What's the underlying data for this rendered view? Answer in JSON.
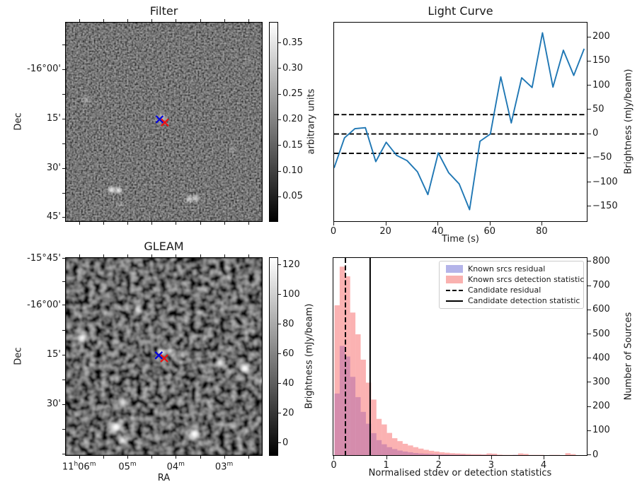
{
  "figure": {
    "background": "#ffffff"
  },
  "panels": {
    "filter": {
      "title": "Filter",
      "ylabel": "Dec",
      "yticks": {
        "labels": [
          "-16°00'",
          "15'",
          "30'",
          "45'"
        ],
        "fracs": [
          0.236,
          0.483,
          0.731,
          0.974
        ],
        "minor_fracs": [
          0.112,
          0.359,
          0.607,
          0.855
        ]
      },
      "xticks": {
        "fracs": [
          0.0706,
          0.3155,
          0.56,
          0.805
        ],
        "minor_fracs": [
          0.193,
          0.438,
          0.683,
          0.927
        ]
      },
      "colorbar": {
        "label": "arbitrary units",
        "ticks": [
          "0.05",
          "0.10",
          "0.15",
          "0.20",
          "0.25",
          "0.30",
          "0.35"
        ],
        "fracs": [
          0.872,
          0.744,
          0.615,
          0.487,
          0.359,
          0.231,
          0.103
        ]
      },
      "markers": [
        {
          "name": "candidate-position",
          "shape": "x",
          "color": "#0000dd",
          "fx": 0.478,
          "fy": 0.487
        },
        {
          "name": "matched-position",
          "shape": "x",
          "color": "#ee1111",
          "fx": 0.505,
          "fy": 0.503
        }
      ],
      "sources": [
        {
          "fx": 0.233,
          "fy": 0.842,
          "r": 4,
          "i": 0.95
        },
        {
          "fx": 0.269,
          "fy": 0.845,
          "r": 4,
          "i": 0.9
        },
        {
          "fx": 0.277,
          "fy": 0.918,
          "r": 2.5,
          "i": 0.5
        },
        {
          "fx": 0.63,
          "fy": 0.889,
          "r": 4,
          "i": 0.75
        },
        {
          "fx": 0.663,
          "fy": 0.886,
          "r": 4,
          "i": 0.7
        },
        {
          "fx": 0.105,
          "fy": 0.39,
          "r": 4,
          "i": 0.45
        },
        {
          "fx": 0.49,
          "fy": 0.482,
          "r": 7,
          "i": 0.38
        },
        {
          "fx": 0.85,
          "fy": 0.64,
          "r": 4,
          "i": 0.3
        },
        {
          "fx": 0.93,
          "fy": 0.19,
          "r": 3,
          "i": 0.3
        }
      ]
    },
    "gleam": {
      "title": "GLEAM",
      "ylabel": "Dec",
      "xlabel": "RA",
      "yticks": {
        "labels": [
          "-15°45'",
          "-16°00'",
          "15'",
          "30'"
        ],
        "fracs": [
          0.004,
          0.24,
          0.49,
          0.74
        ],
        "minor_fracs": [
          0.12,
          0.365,
          0.615,
          0.865,
          0.988
        ]
      },
      "xticks": {
        "label_parts": [
          [
            "11",
            "h",
            "06",
            "m"
          ],
          [
            "05",
            "m"
          ],
          [
            "04",
            "m"
          ],
          [
            "03",
            "m"
          ]
        ],
        "fracs": [
          0.0706,
          0.3155,
          0.56,
          0.805
        ],
        "minor_fracs": [
          0.193,
          0.438,
          0.683,
          0.927
        ]
      },
      "colorbar": {
        "label": "Brightness (mJy/beam)",
        "ticks": [
          "0",
          "20",
          "40",
          "60",
          "80",
          "100",
          "120"
        ],
        "fracs": [
          0.9328,
          0.7836,
          0.6343,
          0.4851,
          0.3358,
          0.1866,
          0.0373
        ]
      },
      "markers": [
        {
          "name": "candidate-position",
          "shape": "x",
          "color": "#0000dd",
          "fx": 0.474,
          "fy": 0.494
        },
        {
          "name": "matched-position",
          "shape": "x",
          "color": "#ee1111",
          "fx": 0.502,
          "fy": 0.509
        }
      ],
      "sources": [
        {
          "fx": 0.084,
          "fy": 0.404,
          "r": 6,
          "i": 1
        },
        {
          "fx": 0.075,
          "fy": 0.472,
          "r": 3.5,
          "i": 0.6
        },
        {
          "fx": 0.075,
          "fy": 0.535,
          "r": 3.5,
          "i": 0.55
        },
        {
          "fx": 0.255,
          "fy": 0.06,
          "r": 4,
          "i": 0.45
        },
        {
          "fx": 0.366,
          "fy": 0.258,
          "r": 5,
          "i": 0.85
        },
        {
          "fx": 0.263,
          "fy": 0.436,
          "r": 3,
          "i": 0.5
        },
        {
          "fx": 0.487,
          "fy": 0.477,
          "r": 5.5,
          "i": 1
        },
        {
          "fx": 0.53,
          "fy": 0.468,
          "r": 4.5,
          "i": 0.95
        },
        {
          "fx": 0.595,
          "fy": 0.484,
          "r": 3.5,
          "i": 0.6
        },
        {
          "fx": 0.787,
          "fy": 0.532,
          "r": 5,
          "i": 1
        },
        {
          "fx": 0.913,
          "fy": 0.561,
          "r": 6.5,
          "i": 1
        },
        {
          "fx": 1.0,
          "fy": 0.62,
          "r": 4.5,
          "i": 0.9
        },
        {
          "fx": 0.291,
          "fy": 0.737,
          "r": 4.5,
          "i": 0.9
        },
        {
          "fx": 0.255,
          "fy": 0.857,
          "r": 7,
          "i": 1
        },
        {
          "fx": 0.291,
          "fy": 0.926,
          "r": 5,
          "i": 0.95
        },
        {
          "fx": 0.655,
          "fy": 0.892,
          "r": 7,
          "i": 1
        },
        {
          "fx": 0.9,
          "fy": 0.187,
          "r": 3,
          "i": 0.45
        },
        {
          "fx": 0.84,
          "fy": 0.1,
          "r": 3,
          "i": 0.35
        },
        {
          "fx": 0.075,
          "fy": 0.3,
          "r": 3,
          "i": 0.4
        }
      ]
    }
  },
  "chart_data": [
    {
      "id": "light_curve",
      "type": "line",
      "title": "Light Curve",
      "xlabel": "Time (s)",
      "ylabel": "Brightness (mJy/beam)",
      "xlim": [
        0,
        97
      ],
      "ylim": [
        -180,
        230
      ],
      "xticks": [
        0,
        20,
        40,
        60,
        80
      ],
      "yticks": [
        -150,
        -100,
        -50,
        0,
        50,
        100,
        150,
        200
      ],
      "line_color": "#1f77b4",
      "x": [
        0,
        4,
        8,
        12,
        16,
        20,
        24,
        28,
        32,
        36,
        40,
        44,
        48,
        52,
        56,
        60,
        64,
        68,
        72,
        76,
        80,
        84,
        88,
        92,
        96
      ],
      "y": [
        -70,
        -8,
        11,
        13,
        -57,
        -17,
        -44,
        -55,
        -78,
        -125,
        -39,
        -80,
        -103,
        -156,
        -15,
        0,
        118,
        23,
        116,
        96,
        209,
        97,
        173,
        121,
        176
      ],
      "threshold_lines": {
        "style": "dashed",
        "color": "#000000",
        "values": [
          40,
          0,
          -40
        ]
      },
      "grid": false,
      "tick_side": "right"
    },
    {
      "id": "histogram",
      "type": "bar",
      "xlabel": "Normalised stdev or detection statistics",
      "ylabel": "Number of Sources",
      "xlim": [
        -0.02,
        4.81
      ],
      "ylim": [
        0,
        816
      ],
      "xticks": [
        0,
        1,
        2,
        3,
        4
      ],
      "yticks": [
        0,
        100,
        200,
        300,
        400,
        500,
        600,
        700,
        800
      ],
      "bin_start": 0,
      "bin_width": 0.1,
      "series": [
        {
          "name": "Known srcs residual",
          "fill": "rgba(75,75,230,0.38)",
          "legend_swatch": "#b4b4e9",
          "values": [
            255,
            452,
            408,
            324,
            240,
            179,
            130,
            91,
            62,
            45,
            33,
            25,
            19,
            15,
            12,
            9,
            7,
            6,
            5,
            4,
            3,
            3,
            2,
            2,
            2,
            1,
            1,
            1,
            1,
            1,
            1,
            0,
            0,
            0,
            1,
            0,
            0,
            0,
            0,
            0,
            0,
            0,
            0,
            0,
            0,
            0
          ]
        },
        {
          "name": "Known srcs detection statistic",
          "fill": "rgba(247,85,85,0.45)",
          "legend_swatch": "#f9b1af",
          "values": [
            620,
            780,
            740,
            590,
            500,
            395,
            300,
            230,
            150,
            127,
            92,
            70,
            58,
            47,
            40,
            33,
            27,
            22,
            18,
            15,
            12,
            10,
            8,
            7,
            6,
            5,
            4,
            4,
            3,
            7,
            6,
            2,
            1,
            1,
            1,
            7,
            5,
            1,
            1,
            1,
            0,
            1,
            1,
            0,
            8,
            4
          ]
        }
      ],
      "vlines": [
        {
          "name": "Candidate residual",
          "x": 0.21,
          "style": "dashed",
          "color": "#000000"
        },
        {
          "name": "Candidate detection statistic",
          "x": 0.68,
          "style": "solid",
          "color": "#000000"
        }
      ],
      "legend_position": "upper right",
      "grid": false,
      "tick_side": "right"
    }
  ]
}
